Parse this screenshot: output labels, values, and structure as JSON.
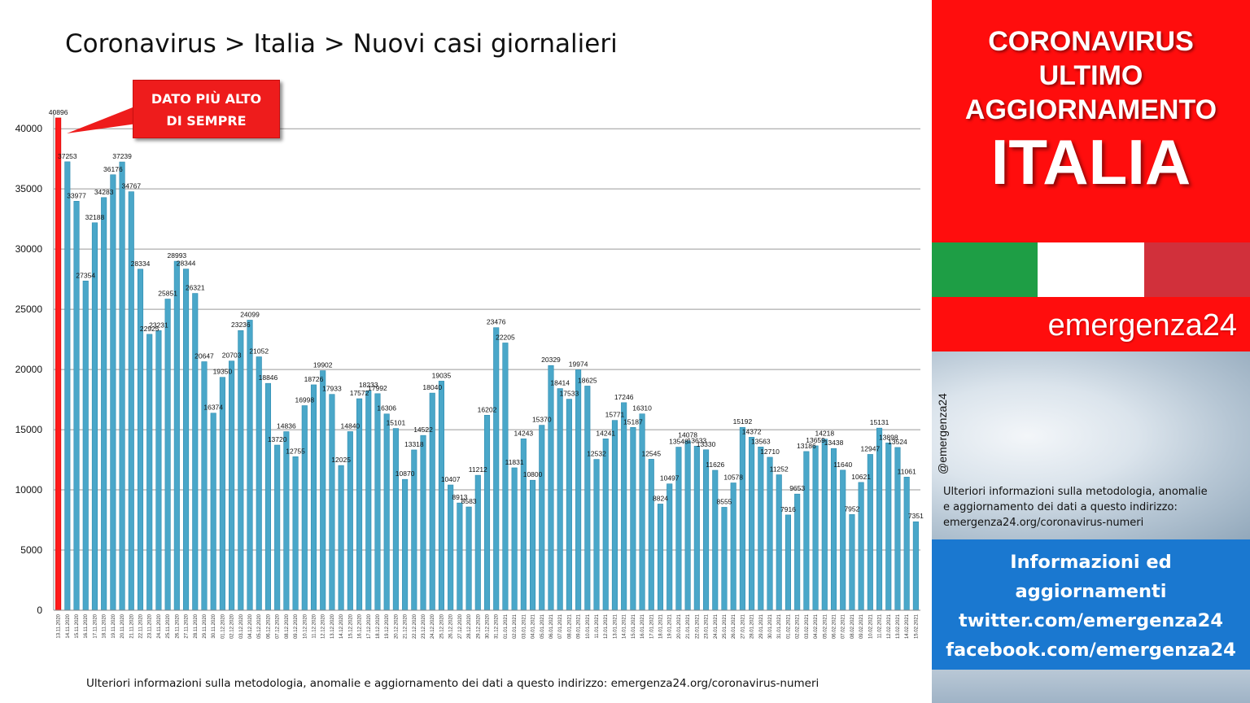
{
  "title": "Coronavirus > Italia > Nuovi casi giornalieri",
  "callout": {
    "line1": "DATO PIÙ ALTO",
    "line2": "DI SEMPRE"
  },
  "footer_note": "Ulteriori informazioni sulla metodologia, anomalie e aggiornamento dei dati a questo indirizzo: emergenza24.org/coronavirus-numeri",
  "side": {
    "line1": "CORONAVIRUS",
    "line2": "ULTIMO",
    "line3": "AGGIORNAMENTO",
    "country": "ITALIA",
    "brand": "emergenza24",
    "handle": "@emergenza24",
    "info_line1": "Ulteriori informazioni sulla metodologia, anomalie",
    "info_line2": "e aggiornamento dei dati a questo indirizzo:",
    "info_line3": "emergenza24.org/coronavirus-numeri",
    "bottom_line1": "Informazioni ed",
    "bottom_line2": "aggiornamenti",
    "bottom_line3": "twitter.com/emergenza24",
    "bottom_line4": "facebook.com/emergenza24",
    "flag_colors": [
      "#1e9e45",
      "#ffffff",
      "#d1303b"
    ],
    "accent_red": "#ff0d0d",
    "accent_blue": "#1a78d0"
  },
  "chart_data": {
    "type": "bar",
    "ylim": [
      0,
      41500
    ],
    "yticks": [
      0,
      5000,
      10000,
      15000,
      20000,
      25000,
      30000,
      35000,
      40000
    ],
    "grid": true,
    "bar_color": "#4aa7c9",
    "highlight_color": "#ff1a1a",
    "highlight_index": 0,
    "categories": [
      "13.11.2020",
      "14.11.2020",
      "15.11.2020",
      "16.11.2020",
      "17.11.2020",
      "18.11.2020",
      "19.11.2020",
      "20.11.2020",
      "21.11.2020",
      "22.11.2020",
      "23.11.2020",
      "24.11.2020",
      "25.11.2020",
      "26.11.2020",
      "27.11.2020",
      "28.11.2020",
      "29.11.2020",
      "30.11.2020",
      "01.12.2020",
      "02.12.2020",
      "03.12.2020",
      "04.12.2020",
      "05.12.2020",
      "06.12.2020",
      "07.12.2020",
      "08.12.2020",
      "09.12.2020",
      "10.12.2020",
      "11.12.2020",
      "12.12.2020",
      "13.12.2020",
      "14.12.2020",
      "15.12.2020",
      "16.12.2020",
      "17.12.2020",
      "18.12.2020",
      "19.12.2020",
      "20.12.2020",
      "21.12.2020",
      "22.12.2020",
      "23.12.2020",
      "24.12.2020",
      "25.12.2020",
      "26.12.2020",
      "27.12.2020",
      "28.12.2020",
      "29.12.2020",
      "30.12.2020",
      "31.12.2020",
      "01.01.2021",
      "02.01.2021",
      "03.01.2021",
      "04.01.2021",
      "05.01.2021",
      "06.01.2021",
      "07.01.2021",
      "08.01.2021",
      "09.01.2021",
      "10.01.2021",
      "11.01.2021",
      "12.01.2021",
      "13.01.2021",
      "14.01.2021",
      "15.01.2021",
      "16.01.2021",
      "17.01.2021",
      "18.01.2021",
      "19.01.2021",
      "20.01.2021",
      "21.01.2021",
      "22.01.2021",
      "23.01.2021",
      "24.01.2021",
      "25.01.2021",
      "26.01.2021",
      "27.01.2021",
      "28.01.2021",
      "29.01.2021",
      "30.01.2021",
      "31.01.2021",
      "01.02.2021",
      "02.02.2021",
      "03.02.2021",
      "04.02.2021",
      "05.02.2021",
      "06.02.2021",
      "07.02.2021",
      "08.02.2021",
      "09.02.2021",
      "10.02.2021",
      "11.02.2021",
      "12.02.2021",
      "13.02.2021",
      "14.02.2021",
      "15.02.2021"
    ],
    "values": [
      40896,
      37253,
      33977,
      27354,
      32188,
      34283,
      36176,
      37239,
      34767,
      28334,
      22925,
      23231,
      25851,
      28993,
      28344,
      26321,
      20647,
      16374,
      19350,
      20703,
      23236,
      24099,
      21052,
      18846,
      13720,
      14836,
      12755,
      16998,
      18726,
      19902,
      17933,
      12025,
      14840,
      17572,
      18233,
      17992,
      16306,
      15101,
      10870,
      13318,
      14522,
      18040,
      19035,
      10407,
      8913,
      8583,
      11212,
      16202,
      23476,
      22205,
      11831,
      14243,
      10800,
      15370,
      20329,
      18414,
      17533,
      19974,
      18625,
      12532,
      14241,
      15771,
      17246,
      15187,
      16310,
      12545,
      8824,
      10497,
      13548,
      14078,
      13633,
      13330,
      11626,
      8555,
      10578,
      15192,
      14372,
      13563,
      12710,
      11252,
      7916,
      9653,
      13186,
      13659,
      14218,
      13438,
      11640,
      7952,
      10621,
      12947,
      15131,
      13898,
      13524,
      11061,
      7351
    ]
  }
}
